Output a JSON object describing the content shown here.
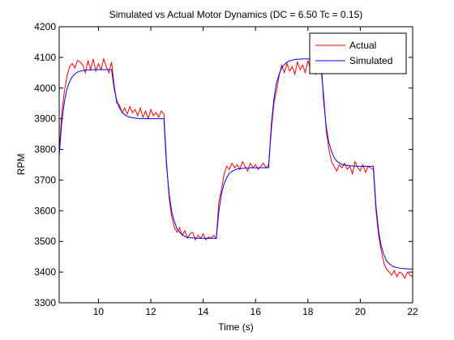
{
  "chart_data": {
    "type": "line",
    "title": "Simulated vs Actual Motor Dynamics (DC = 6.50 Tc = 0.15)",
    "xlabel": "Time (s)",
    "ylabel": "RPM",
    "x": [
      8.5,
      8.6,
      8.7,
      8.8,
      8.9,
      9.0,
      9.1,
      9.2,
      9.3,
      9.4,
      9.5,
      9.6,
      9.7,
      9.8,
      9.9,
      10.0,
      10.1,
      10.2,
      10.3,
      10.4,
      10.5,
      10.6,
      10.7,
      10.8,
      10.9,
      11.0,
      11.1,
      11.2,
      11.3,
      11.4,
      11.5,
      11.6,
      11.7,
      11.8,
      11.9,
      12.0,
      12.1,
      12.2,
      12.3,
      12.4,
      12.5,
      12.6,
      12.7,
      12.8,
      12.9,
      13.0,
      13.1,
      13.2,
      13.3,
      13.4,
      13.5,
      13.6,
      13.7,
      13.8,
      13.9,
      14.0,
      14.1,
      14.2,
      14.3,
      14.4,
      14.5,
      14.6,
      14.7,
      14.8,
      14.9,
      15.0,
      15.1,
      15.2,
      15.3,
      15.4,
      15.5,
      15.6,
      15.7,
      15.8,
      15.9,
      16.0,
      16.1,
      16.2,
      16.3,
      16.4,
      16.5,
      16.6,
      16.7,
      16.8,
      16.9,
      17.0,
      17.1,
      17.2,
      17.3,
      17.4,
      17.5,
      17.6,
      17.7,
      17.8,
      17.9,
      18.0,
      18.1,
      18.2,
      18.3,
      18.4,
      18.5,
      18.6,
      18.7,
      18.8,
      18.9,
      19.0,
      19.1,
      19.2,
      19.3,
      19.4,
      19.5,
      19.6,
      19.7,
      19.8,
      19.9,
      20.0,
      20.1,
      20.2,
      20.3,
      20.4,
      20.5,
      20.6,
      20.7,
      20.8,
      20.9,
      21.0,
      21.1,
      21.2,
      21.3,
      21.4,
      21.5,
      21.6,
      21.7,
      21.8,
      21.9,
      22.0
    ],
    "series": [
      {
        "name": "Actual",
        "color": "#ff0000",
        "values": [
          3790,
          3920,
          3990,
          4040,
          4070,
          4080,
          4065,
          4090,
          4085,
          4075,
          4050,
          4090,
          4060,
          4095,
          4055,
          4080,
          4060,
          4095,
          4070,
          4050,
          4085,
          4010,
          3950,
          3945,
          3920,
          3935,
          3915,
          3940,
          3920,
          3930,
          3910,
          3935,
          3905,
          3925,
          3900,
          3930,
          3910,
          3920,
          3905,
          3925,
          3915,
          3760,
          3640,
          3580,
          3545,
          3530,
          3545,
          3520,
          3535,
          3510,
          3525,
          3530,
          3505,
          3520,
          3510,
          3525,
          3505,
          3515,
          3510,
          3520,
          3510,
          3630,
          3670,
          3720,
          3745,
          3735,
          3755,
          3740,
          3750,
          3735,
          3760,
          3745,
          3730,
          3755,
          3740,
          3750,
          3735,
          3745,
          3755,
          3740,
          3750,
          3860,
          3950,
          3990,
          4040,
          4075,
          4050,
          4080,
          4055,
          4070,
          4045,
          4085,
          4060,
          4075,
          4050,
          4090,
          4060,
          4070,
          4045,
          4080,
          4060,
          3980,
          3860,
          3800,
          3760,
          3745,
          3730,
          3750,
          3740,
          3755,
          3735,
          3745,
          3720,
          3760,
          3740,
          3730,
          3750,
          3725,
          3745,
          3740,
          3735,
          3600,
          3520,
          3470,
          3430,
          3410,
          3400,
          3390,
          3405,
          3385,
          3400,
          3395,
          3380,
          3400,
          3390,
          3385
        ]
      },
      {
        "name": "Simulated",
        "color": "#0000ff",
        "values": [
          3780,
          3890,
          3956,
          3998,
          4021,
          4037,
          4046,
          4052,
          4055,
          4057,
          4058,
          4059,
          4059,
          4060,
          4060,
          4060,
          4060,
          4060,
          4060,
          4060,
          4060,
          3998,
          3959,
          3935,
          3922,
          3913,
          3908,
          3905,
          3903,
          3902,
          3901,
          3900,
          3900,
          3900,
          3900,
          3900,
          3900,
          3900,
          3900,
          3900,
          3900,
          3748,
          3654,
          3596,
          3565,
          3541,
          3530,
          3522,
          3516,
          3514,
          3512,
          3511,
          3511,
          3510,
          3510,
          3510,
          3510,
          3510,
          3510,
          3510,
          3510,
          3600,
          3655,
          3689,
          3708,
          3722,
          3728,
          3733,
          3736,
          3737,
          3738,
          3739,
          3739,
          3740,
          3740,
          3740,
          3740,
          3740,
          3740,
          3740,
          3740,
          3878,
          3964,
          4017,
          4045,
          4067,
          4077,
          4084,
          4089,
          4091,
          4093,
          4094,
          4094,
          4095,
          4095,
          4095,
          4095,
          4095,
          4095,
          4095,
          4095,
          3958,
          3874,
          3822,
          3794,
          3773,
          3762,
          3756,
          3751,
          3749,
          3748,
          3747,
          3746,
          3745,
          3745,
          3745,
          3745,
          3745,
          3745,
          3745,
          3745,
          3614,
          3534,
          3484,
          3457,
          3437,
          3428,
          3421,
          3417,
          3415,
          3413,
          3412,
          3411,
          3411,
          3410,
          3410
        ]
      }
    ],
    "xlim": [
      8.5,
      22
    ],
    "xticks": [
      10,
      12,
      14,
      16,
      18,
      20,
      22
    ],
    "ylim": [
      3300,
      4200
    ],
    "yticks": [
      3300,
      3400,
      3500,
      3600,
      3700,
      3800,
      3900,
      4000,
      4100,
      4200
    ],
    "grid": false,
    "legend": "northeast"
  }
}
